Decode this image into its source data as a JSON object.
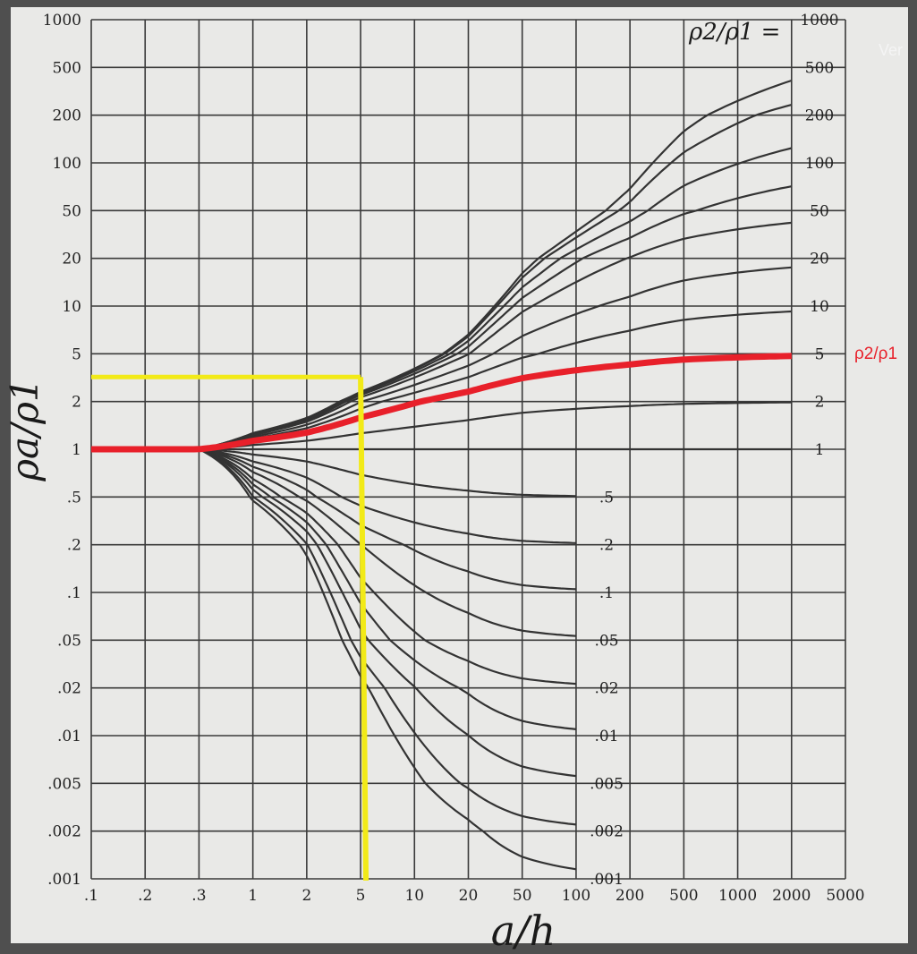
{
  "chart_data": {
    "type": "line",
    "xlabel": "a/h",
    "ylabel": "ρa/ρ1",
    "x_scale": "log",
    "y_scale": "log",
    "grid": true,
    "x_ticks": [
      {
        "label": ".1",
        "value": 0.1
      },
      {
        "label": ".2",
        "value": 0.2
      },
      {
        "label": ".3",
        "value": 0.3
      },
      {
        "label": "1",
        "value": 1
      },
      {
        "label": "2",
        "value": 2
      },
      {
        "label": "5",
        "value": 5
      },
      {
        "label": "10",
        "value": 10
      },
      {
        "label": "20",
        "value": 20
      },
      {
        "label": "50",
        "value": 50
      },
      {
        "label": "100",
        "value": 100
      },
      {
        "label": "200",
        "value": 200
      },
      {
        "label": "500",
        "value": 500
      },
      {
        "label": "1000",
        "value": 1000
      },
      {
        "label": "2000",
        "value": 2000
      },
      {
        "label": "5000",
        "value": 5000
      }
    ],
    "y_ticks": [
      {
        "label": "1000",
        "value": 1000
      },
      {
        "label": "500",
        "value": 500
      },
      {
        "label": "200",
        "value": 200
      },
      {
        "label": "100",
        "value": 100
      },
      {
        "label": "50",
        "value": 50
      },
      {
        "label": "20",
        "value": 20
      },
      {
        "label": "10",
        "value": 10
      },
      {
        "label": "5",
        "value": 5
      },
      {
        "label": "2",
        "value": 2
      },
      {
        "label": "1",
        "value": 1
      },
      {
        "label": ".5",
        "value": 0.5
      },
      {
        "label": ".2",
        "value": 0.2
      },
      {
        "label": ".1",
        "value": 0.1
      },
      {
        "label": ".05",
        "value": 0.05
      },
      {
        "label": ".02",
        "value": 0.02
      },
      {
        "label": ".01",
        "value": 0.01
      },
      {
        "label": ".005",
        "value": 0.005
      },
      {
        "label": ".002",
        "value": 0.002
      },
      {
        "label": ".001",
        "value": 0.001
      }
    ],
    "curve_family_label": "ρ2/ρ1 =",
    "series": [
      {
        "label": "1000",
        "value": 1000,
        "end_x": 2000
      },
      {
        "label": "500",
        "value": 500,
        "end_x": 2000
      },
      {
        "label": "200",
        "value": 200,
        "end_x": 2000
      },
      {
        "label": "100",
        "value": 100,
        "end_x": 2000
      },
      {
        "label": "50",
        "value": 50,
        "end_x": 2000
      },
      {
        "label": "20",
        "value": 20,
        "end_x": 2000
      },
      {
        "label": "10",
        "value": 10,
        "end_x": 2000
      },
      {
        "label": "5",
        "value": 5,
        "end_x": 2000
      },
      {
        "label": "2",
        "value": 2,
        "end_x": 2000
      },
      {
        "label": "1",
        "value": 1,
        "end_x": 2000
      },
      {
        "label": ".5",
        "value": 0.5,
        "end_x": 100
      },
      {
        "label": ".2",
        "value": 0.2,
        "end_x": 100
      },
      {
        "label": ".1",
        "value": 0.1,
        "end_x": 100
      },
      {
        "label": ".05",
        "value": 0.05,
        "end_x": 100
      },
      {
        "label": ".02",
        "value": 0.02,
        "end_x": 100
      },
      {
        "label": ".01",
        "value": 0.01,
        "end_x": 100
      },
      {
        "label": ".005",
        "value": 0.005,
        "end_x": 100
      },
      {
        "label": ".002",
        "value": 0.002,
        "end_x": 100
      },
      {
        "label": ".001",
        "value": 0.001,
        "end_x": 100
      }
    ],
    "highlight": {
      "curve_value": 5,
      "annotation": "ρ2/ρ1",
      "color": "#e8202a",
      "read_point": {
        "x": 5,
        "y": 3.2
      },
      "guide_color": "#f2ea18"
    }
  },
  "overlay": {
    "corner_text": "Ver"
  },
  "colors": {
    "curve": "#333333",
    "grid": "#3a3a3a",
    "paper": "#e9e9e7"
  }
}
